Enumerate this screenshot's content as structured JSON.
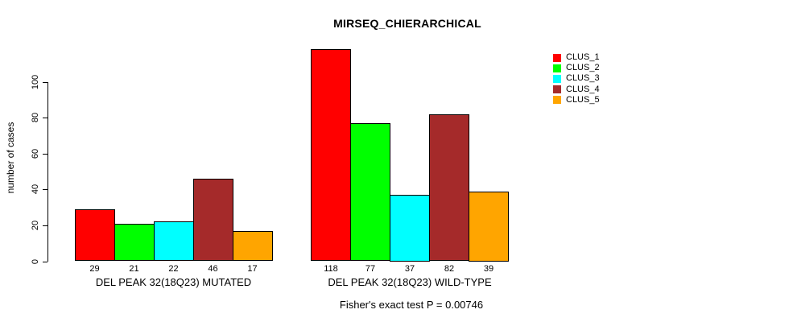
{
  "title": "MIRSEQ_CHIERARCHICAL",
  "annotation": "Fisher's exact test P = 0.00746",
  "y_axis": {
    "label": "number of cases",
    "tick_labels": [
      "0",
      "20",
      "40",
      "60",
      "80",
      "100"
    ]
  },
  "chart_data": {
    "type": "bar",
    "title": "MIRSEQ_CHIERARCHICAL",
    "xlabel": "",
    "ylabel": "number of cases",
    "ylim": [
      0,
      118
    ],
    "yticks": [
      0,
      20,
      40,
      60,
      80,
      100
    ],
    "grid": false,
    "legend_position": "top-right",
    "categories": [
      "DEL PEAK 32(18Q23) MUTATED",
      "DEL PEAK 32(18Q23) WILD-TYPE"
    ],
    "series": [
      {
        "name": "CLUS_1",
        "color": "#FF0000",
        "values": [
          29,
          118
        ]
      },
      {
        "name": "CLUS_2",
        "color": "#00FF00",
        "values": [
          21,
          77
        ]
      },
      {
        "name": "CLUS_3",
        "color": "#00FFFF",
        "values": [
          22,
          37
        ]
      },
      {
        "name": "CLUS_4",
        "color": "#A52A2A",
        "values": [
          46,
          82
        ]
      },
      {
        "name": "CLUS_5",
        "color": "#FFA500",
        "values": [
          17,
          39
        ]
      }
    ],
    "bar_value_labels": [
      [
        29,
        21,
        22,
        46,
        17
      ],
      [
        118,
        77,
        37,
        82,
        39
      ]
    ],
    "annotation": "Fisher's exact test P = 0.00746"
  }
}
